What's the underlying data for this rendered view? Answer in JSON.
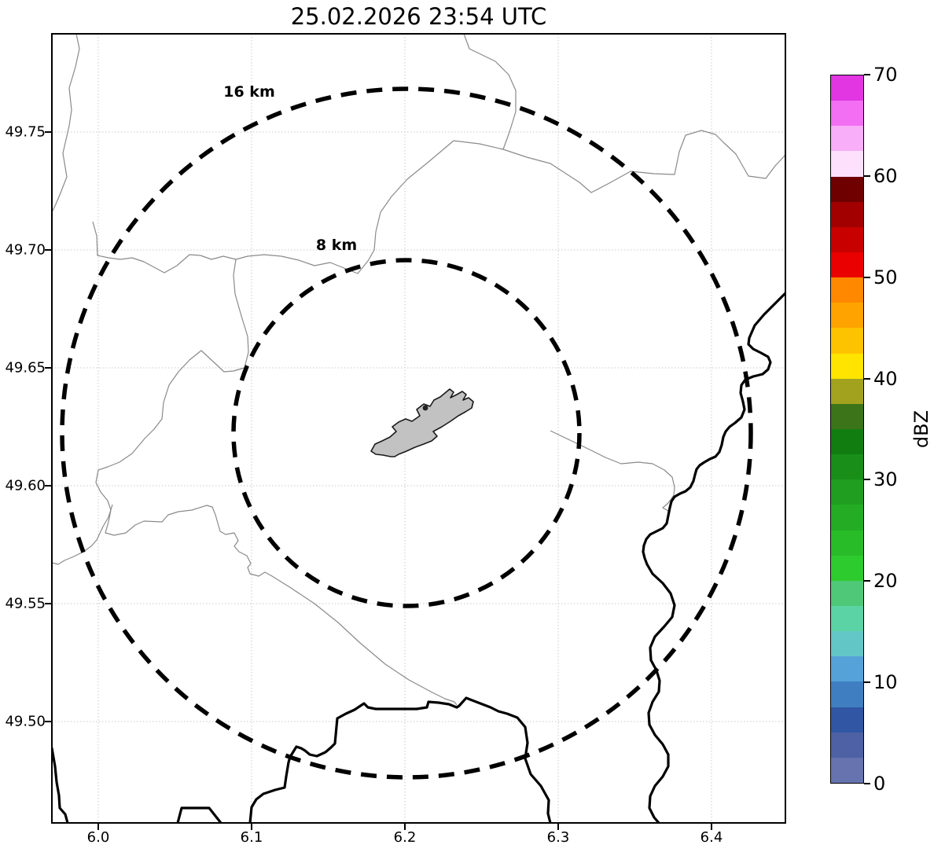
{
  "title": "25.02.2026 23:54 UTC",
  "x_axis": {
    "tick_labels": [
      "6.0",
      "6.1",
      "6.2",
      "6.3",
      "6.4"
    ],
    "tick_values": [
      6.0,
      6.1,
      6.2,
      6.3,
      6.4
    ]
  },
  "y_axis": {
    "tick_labels": [
      "49.50",
      "49.55",
      "49.60",
      "49.65",
      "49.70",
      "49.75"
    ],
    "tick_values": [
      49.5,
      49.55,
      49.6,
      49.65,
      49.7,
      49.75
    ]
  },
  "range_rings": [
    {
      "label": "16 km",
      "radius_km": 16
    },
    {
      "label": "8 km",
      "radius_km": 8
    }
  ],
  "colorbar": {
    "label": "dBZ",
    "vmin": 0,
    "vmax": 70,
    "tick_values": [
      0,
      10,
      20,
      30,
      40,
      50,
      60,
      70
    ],
    "tick_labels": [
      "0",
      "10",
      "20",
      "30",
      "40",
      "50",
      "60",
      "70"
    ],
    "segment_colors_bottom_to_top": [
      "#6673af",
      "#4d61a4",
      "#3156a3",
      "#3f7fc1",
      "#55a2d8",
      "#63c6c6",
      "#5cd3a4",
      "#4fc878",
      "#2ecb2e",
      "#29bc29",
      "#24ad24",
      "#1f9e1f",
      "#198f19",
      "#117d11",
      "#3b7419",
      "#a2a21f",
      "#ffe400",
      "#fec300",
      "#ffa300",
      "#ff8800",
      "#ea0000",
      "#c80000",
      "#a20000",
      "#6e0000",
      "#fce0fc",
      "#f8aef8",
      "#f26ef2",
      "#e136e1"
    ]
  },
  "chart_data": {
    "type": "map",
    "title": "25.02.2026 23:54 UTC",
    "x_range": [
      5.97,
      6.448
    ],
    "y_range": [
      49.457,
      49.792
    ],
    "grid": true,
    "colorbar_label": "dBZ",
    "colorbar_range": [
      0,
      70
    ],
    "range_rings_km": [
      8,
      16
    ],
    "ring_center_lonlat": [
      6.201,
      49.622
    ]
  }
}
